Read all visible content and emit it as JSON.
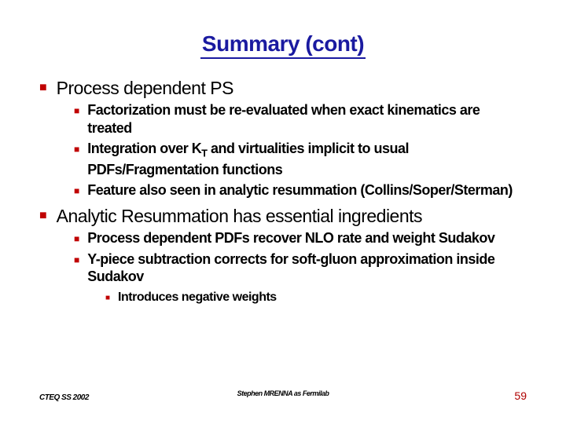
{
  "colors": {
    "title": "#1a1aa0",
    "bullet": "#c00000",
    "text": "#000000",
    "page_number": "#b00000",
    "background": "#ffffff"
  },
  "title": "Summary (cont)",
  "content": [
    {
      "text": "Process dependent PS",
      "children": [
        {
          "text": "Factorization must be re-evaluated when exact kinematics are treated"
        },
        {
          "text_html": "Integration over K<sub>T</sub> and virtualities implicit to usual PDFs/Fragmentation functions",
          "text": "Integration over K_T and virtualities implicit to usual PDFs/Fragmentation functions"
        },
        {
          "text": "Feature also seen in analytic resummation (Collins/Soper/Sterman)"
        }
      ]
    },
    {
      "text": "Analytic Resummation has essential ingredients",
      "children": [
        {
          "text": "Process dependent PDFs recover NLO rate and weight Sudakov"
        },
        {
          "text": "Y-piece subtraction corrects for soft-gluon approximation inside Sudakov",
          "children": [
            {
              "text": "Introduces negative weights"
            }
          ]
        }
      ]
    }
  ],
  "footer": {
    "left": "CTEQ SS 2002",
    "center": "Stephen MRENNA as Fermilab",
    "page_number": "59"
  }
}
